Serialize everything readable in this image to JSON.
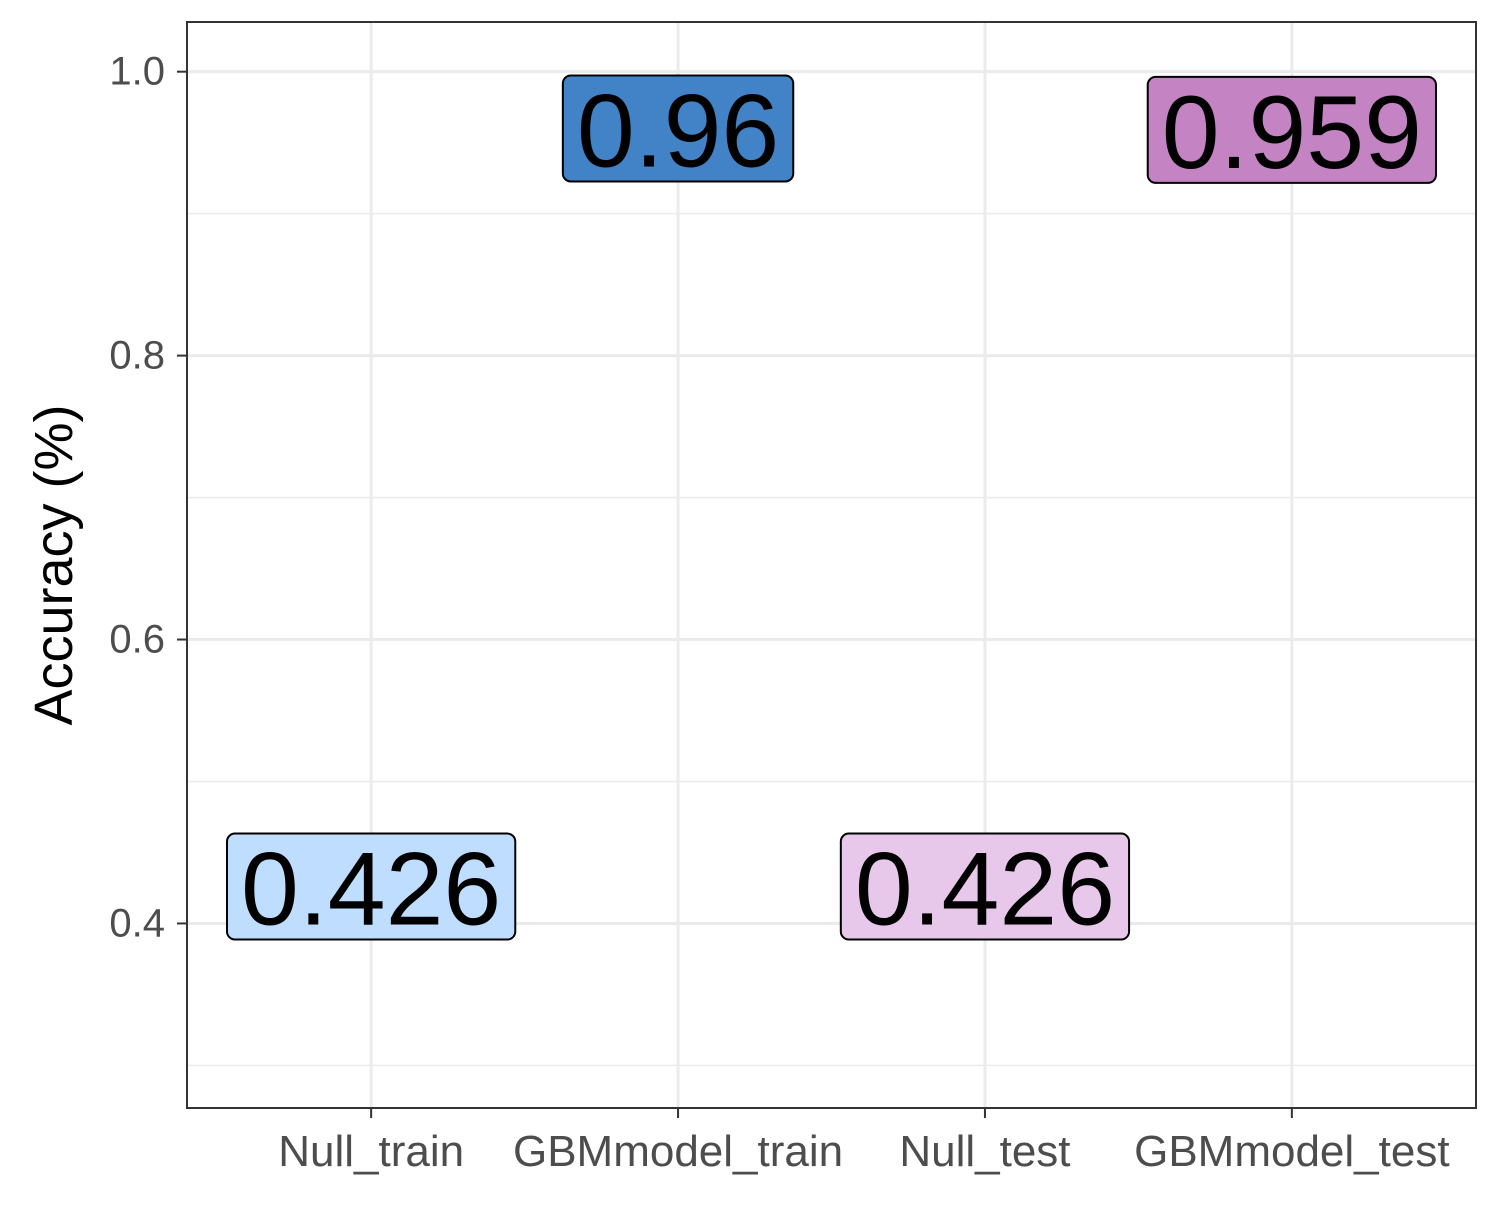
{
  "chart_data": {
    "type": "scatter",
    "title": "",
    "xlabel": "",
    "ylabel": "Accuracy (%)",
    "categories": [
      "Null_train",
      "GBMmodel_train",
      "Null_test",
      "GBMmodel_test"
    ],
    "values": [
      0.426,
      0.96,
      0.426,
      0.959
    ],
    "labels": [
      "0.426",
      "0.96",
      "0.426",
      "0.959"
    ],
    "label_colors": [
      "#BFDEFF",
      "#4282C6",
      "#E8C8EA",
      "#C484C4"
    ],
    "ylim": [
      0.27,
      1.035
    ],
    "y_ticks": [
      0.4,
      0.6,
      0.8,
      1.0
    ],
    "y_tick_labels": [
      "0.4",
      "0.6",
      "0.8",
      "1.0"
    ],
    "grid": true,
    "legend": "none"
  }
}
